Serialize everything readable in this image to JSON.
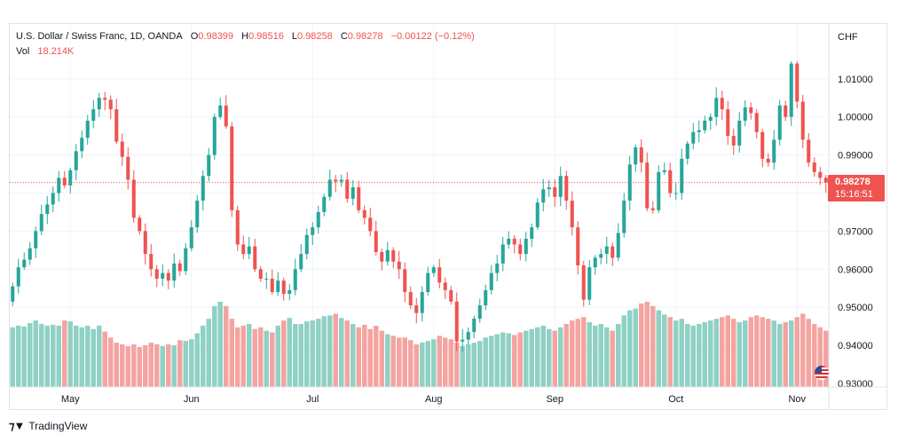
{
  "legend": {
    "symbol": "U.S. Dollar / Swiss Franc, 1D, OANDA",
    "o_label": "O",
    "o_value": "0.98399",
    "h_label": "H",
    "h_value": "0.98516",
    "l_label": "L",
    "l_value": "0.98258",
    "c_label": "C",
    "c_value": "0.98278",
    "change": "−0.00122 (−0.12%)",
    "vol_label": "Vol",
    "vol_value": "18.214K"
  },
  "price_axis": {
    "currency": "CHF",
    "ticks": [
      "1.01000",
      "1.00000",
      "0.99000",
      "0.98000",
      "0.97000",
      "0.96000",
      "0.95000",
      "0.94000",
      "0.93000"
    ]
  },
  "current_price": {
    "price": "0.98278",
    "countdown": "15:16:51"
  },
  "branding": {
    "name": "TradingView"
  },
  "colors": {
    "up": "#26a69a",
    "down": "#ef5350",
    "vol_up": "#8fd1c4",
    "vol_down": "#f4a4a0",
    "grid": "#f0f3fa"
  },
  "chart_data": {
    "type": "candlestick",
    "title": "U.S. Dollar / Swiss Franc, 1D, OANDA",
    "ylabel": "CHF",
    "ylim": [
      0.93,
      1.014
    ],
    "x_ticks": [
      "May",
      "Jun",
      "Jul",
      "Aug",
      "Sep",
      "Oct",
      "Nov"
    ],
    "x_tick_index": [
      10,
      31,
      52,
      73,
      94,
      115,
      136
    ],
    "closes": [
      0.9555,
      0.9605,
      0.9625,
      0.9655,
      0.97,
      0.9745,
      0.977,
      0.98,
      0.984,
      0.982,
      0.986,
      0.991,
      0.9945,
      0.999,
      1.002,
      1.005,
      1.0045,
      1.002,
      0.9935,
      0.9895,
      0.9835,
      0.9735,
      0.97,
      0.964,
      0.96,
      0.9575,
      0.959,
      0.957,
      0.9615,
      0.9595,
      0.9655,
      0.971,
      0.978,
      0.9845,
      0.99,
      1.0,
      1.003,
      0.9975,
      0.9755,
      0.9665,
      0.964,
      0.966,
      0.96,
      0.9575,
      0.9575,
      0.954,
      0.957,
      0.9535,
      0.9545,
      0.96,
      0.964,
      0.969,
      0.971,
      0.975,
      0.979,
      0.9835,
      0.983,
      0.9835,
      0.9785,
      0.9815,
      0.9755,
      0.9735,
      0.97,
      0.9645,
      0.962,
      0.965,
      0.962,
      0.96,
      0.954,
      0.9505,
      0.9485,
      0.954,
      0.959,
      0.9605,
      0.9565,
      0.9545,
      0.9515,
      0.941,
      0.9415,
      0.9435,
      0.947,
      0.9505,
      0.9545,
      0.959,
      0.9615,
      0.9665,
      0.968,
      0.9665,
      0.964,
      0.968,
      0.971,
      0.9775,
      0.981,
      0.9815,
      0.979,
      0.9845,
      0.978,
      0.971,
      0.961,
      0.952,
      0.9605,
      0.963,
      0.964,
      0.966,
      0.963,
      0.9695,
      0.978,
      0.9875,
      0.992,
      0.988,
      0.976,
      0.9755,
      0.9855,
      0.986,
      0.98,
      0.98,
      0.989,
      0.993,
      0.996,
      0.9965,
      0.999,
      1.0,
      1.005,
      1.002,
      0.995,
      0.9925,
      0.999,
      1.0025,
      1.001,
      0.996,
      0.989,
      0.988,
      0.994,
      1.003,
      1.0,
      1.014,
      1.004,
      0.994,
      0.988,
      0.9855,
      0.984,
      0.9828
    ],
    "volumes": [
      0.7,
      0.72,
      0.71,
      0.75,
      0.78,
      0.74,
      0.72,
      0.73,
      0.72,
      0.78,
      0.77,
      0.72,
      0.7,
      0.72,
      0.68,
      0.72,
      0.65,
      0.58,
      0.52,
      0.5,
      0.48,
      0.5,
      0.47,
      0.49,
      0.52,
      0.5,
      0.48,
      0.5,
      0.49,
      0.55,
      0.54,
      0.56,
      0.63,
      0.72,
      0.8,
      0.95,
      1.0,
      0.95,
      0.8,
      0.7,
      0.72,
      0.74,
      0.68,
      0.7,
      0.66,
      0.64,
      0.72,
      0.78,
      0.81,
      0.74,
      0.74,
      0.77,
      0.78,
      0.8,
      0.83,
      0.84,
      0.86,
      0.81,
      0.78,
      0.74,
      0.7,
      0.73,
      0.68,
      0.72,
      0.66,
      0.62,
      0.6,
      0.58,
      0.58,
      0.55,
      0.5,
      0.52,
      0.54,
      0.56,
      0.6,
      0.58,
      0.56,
      0.52,
      0.48,
      0.5,
      0.52,
      0.54,
      0.58,
      0.6,
      0.62,
      0.64,
      0.63,
      0.61,
      0.64,
      0.66,
      0.68,
      0.7,
      0.72,
      0.68,
      0.66,
      0.7,
      0.74,
      0.78,
      0.8,
      0.82,
      0.76,
      0.72,
      0.74,
      0.7,
      0.66,
      0.74,
      0.84,
      0.9,
      0.92,
      0.98,
      1.0,
      0.95,
      0.9,
      0.85,
      0.82,
      0.78,
      0.8,
      0.74,
      0.72,
      0.74,
      0.76,
      0.78,
      0.8,
      0.82,
      0.84,
      0.8,
      0.76,
      0.78,
      0.82,
      0.84,
      0.82,
      0.8,
      0.78,
      0.74,
      0.76,
      0.78,
      0.82,
      0.86,
      0.8,
      0.74,
      0.7,
      0.66
    ]
  }
}
